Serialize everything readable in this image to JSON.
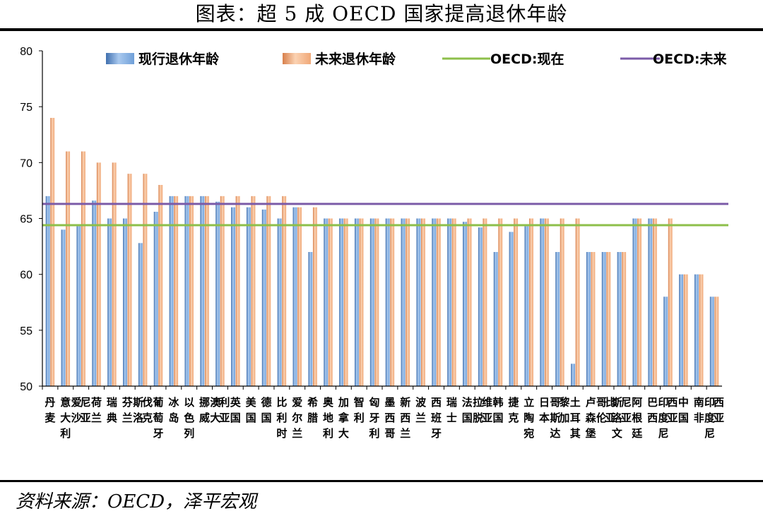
{
  "title": "图表：超 5 成 OECD 国家提高退休年龄",
  "source": "资料来源：OECD，泽平宏观",
  "colors": {
    "current_bar": "#6f9fd8",
    "future_bar": "#f0a878",
    "oecd_now_line": "#8dbf4a",
    "oecd_future_line": "#7b5ba8"
  },
  "chart_data": {
    "type": "bar",
    "ylim": [
      50,
      80
    ],
    "yticks": [
      50,
      55,
      60,
      65,
      70,
      75,
      80
    ],
    "categories": [
      "丹麦",
      "意大利",
      "爱沙尼亚",
      "荷兰",
      "瑞典",
      "芬兰",
      "斯洛伐克",
      "葡萄牙",
      "冰岛",
      "以色列",
      "挪威",
      "澳大利亚",
      "英国",
      "美国",
      "德国",
      "比利时",
      "爱尔兰",
      "希腊",
      "奥地利",
      "加拿大",
      "智利",
      "匈牙利",
      "墨西哥",
      "新西兰",
      "波兰",
      "西班牙",
      "瑞士",
      "法国",
      "拉脱维亚",
      "韩国",
      "捷克",
      "立陶宛",
      "日本",
      "哥斯达黎加",
      "土耳其",
      "卢森堡",
      "哥伦比亚",
      "斯洛文尼亚",
      "阿根廷",
      "巴西",
      "印度尼西亚",
      "中国",
      "南非",
      "印度尼西亚"
    ],
    "series": [
      {
        "name": "现行退休年龄",
        "values": [
          67,
          64,
          64.3,
          66.6,
          65,
          65,
          62.8,
          65.6,
          67,
          67,
          67,
          66.5,
          66,
          66,
          65.8,
          65,
          66,
          62,
          65,
          65,
          65,
          65,
          65,
          65,
          65,
          65,
          65,
          64.7,
          64.2,
          62,
          63.8,
          64.3,
          65,
          62,
          52,
          62,
          62,
          62,
          65,
          65,
          58,
          60,
          60,
          58
        ]
      },
      {
        "name": "未来退休年龄",
        "values": [
          74,
          71,
          71,
          70,
          70,
          69,
          69,
          68,
          67,
          67,
          67,
          67,
          67,
          67,
          67,
          67,
          66,
          66,
          65,
          65,
          65,
          65,
          65,
          65,
          65,
          65,
          65,
          65,
          65,
          65,
          65,
          65,
          65,
          65,
          65,
          62,
          62,
          62,
          65,
          65,
          65,
          60,
          60,
          58
        ]
      },
      {
        "name": "OECD:现在",
        "type": "line",
        "value": 64.4
      },
      {
        "name": "OECD:未来",
        "type": "line",
        "value": 66.3
      }
    ],
    "legend_position": "top"
  }
}
